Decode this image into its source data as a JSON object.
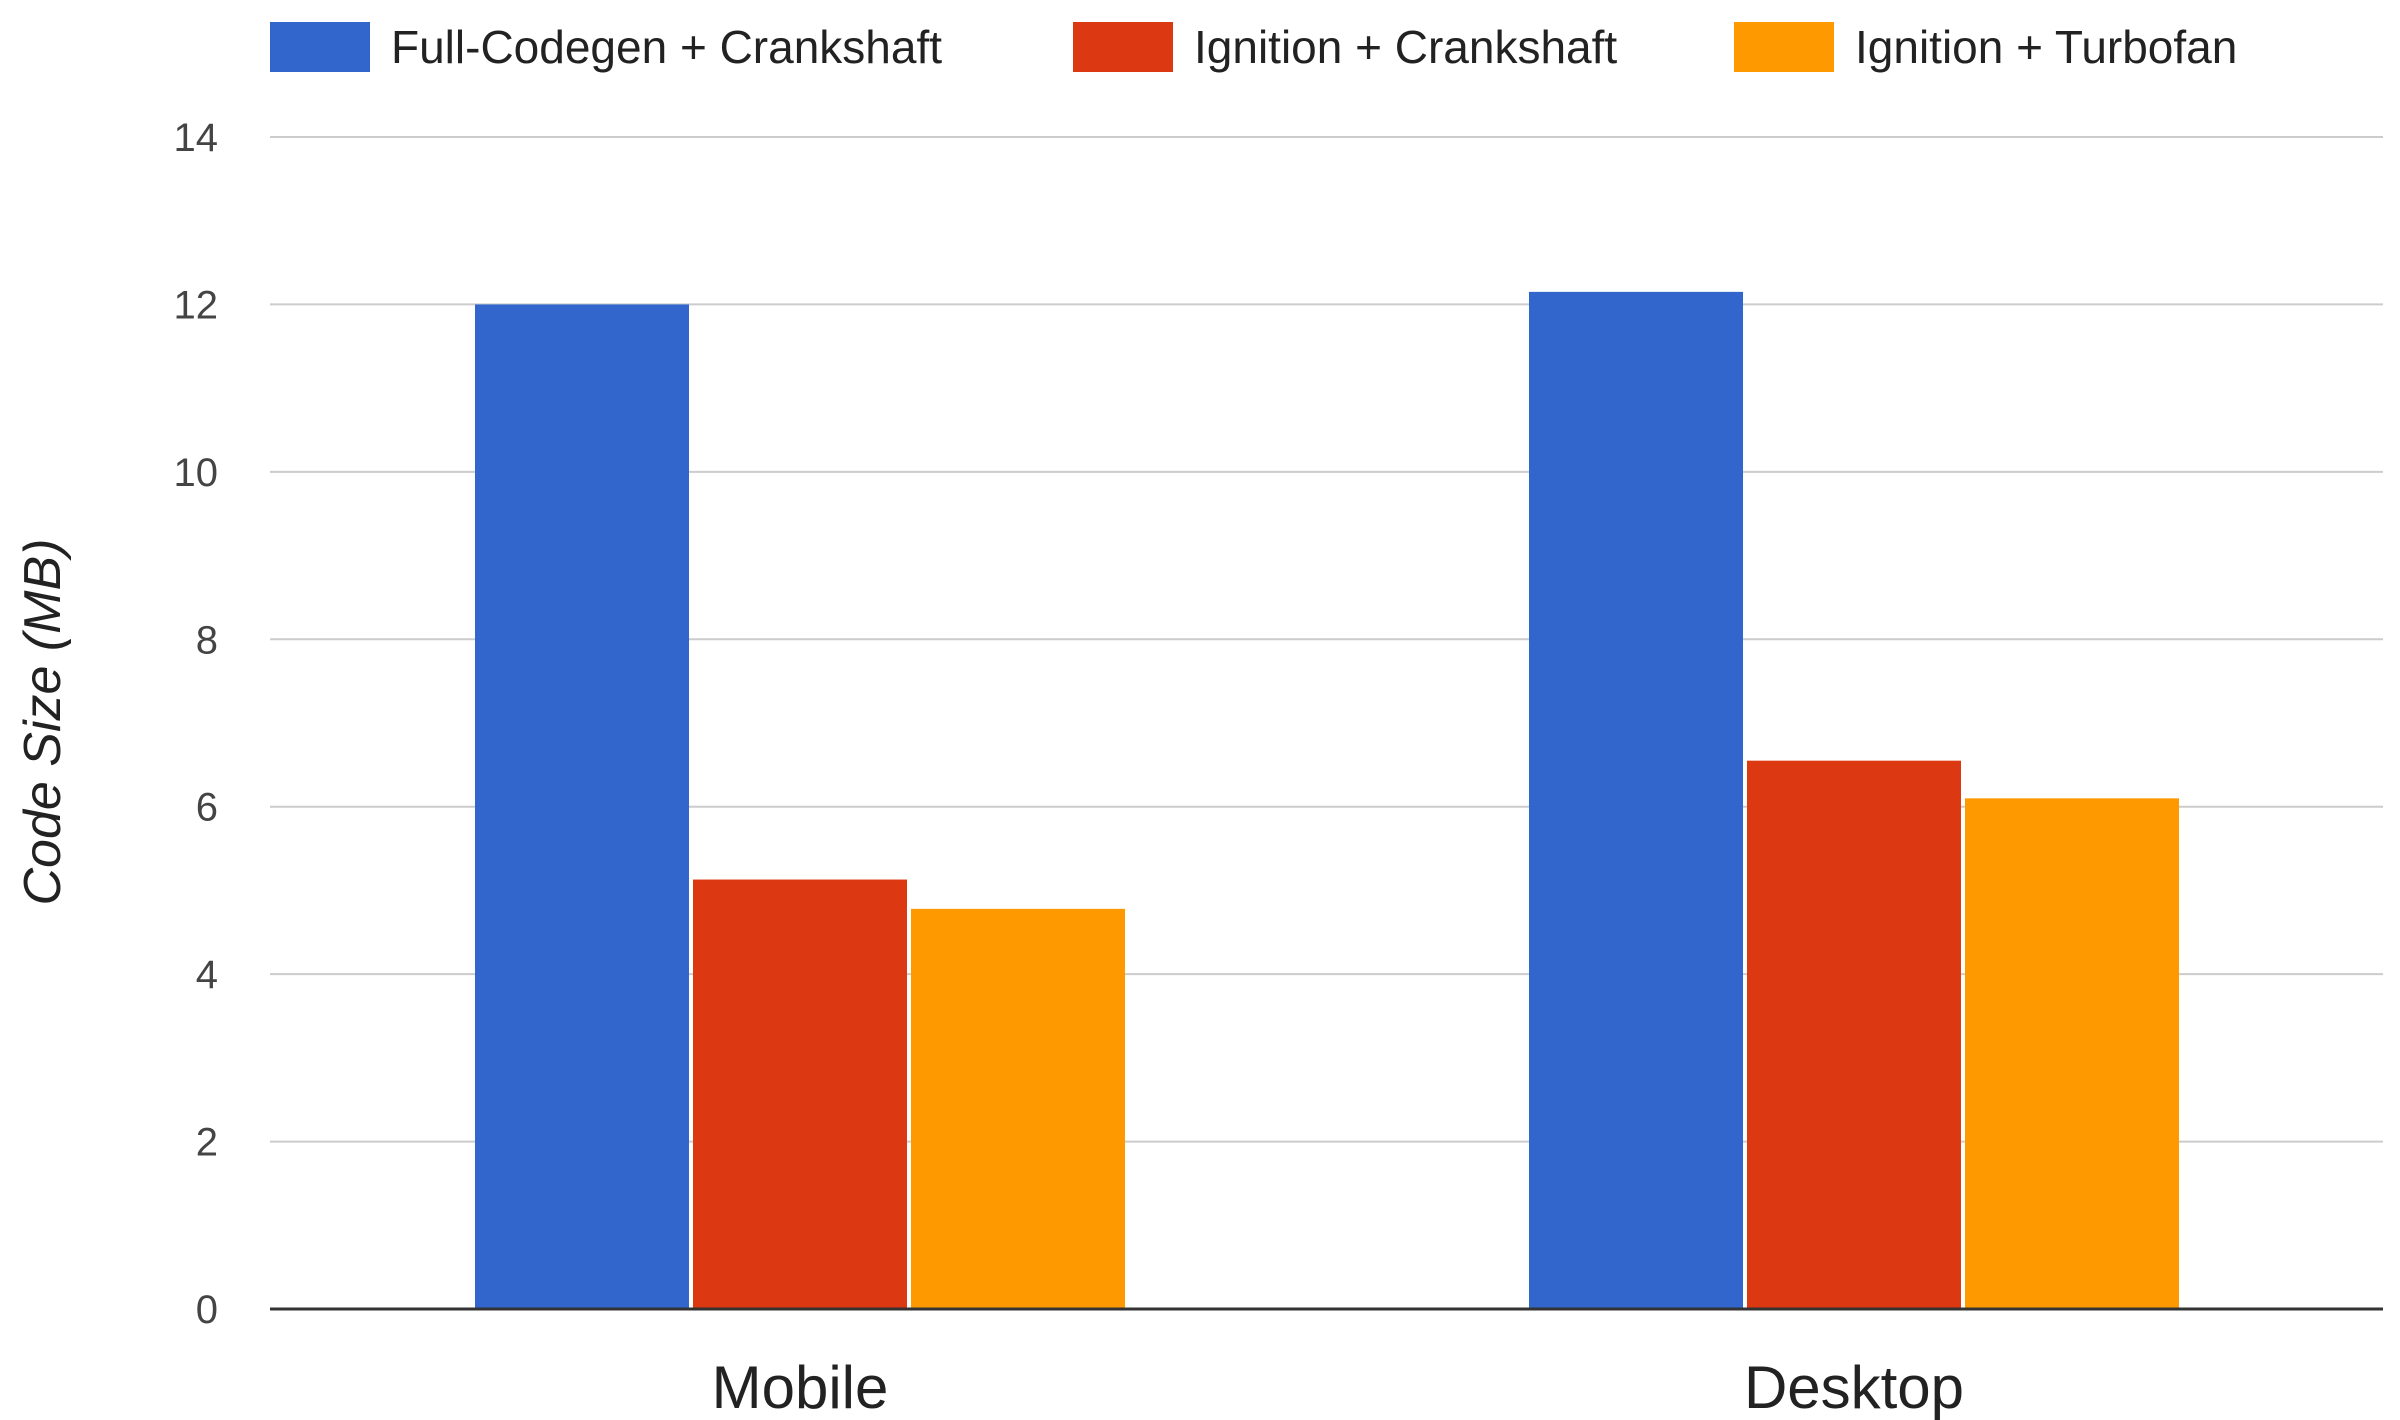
{
  "chart_data": {
    "type": "bar",
    "title": "",
    "xlabel": "",
    "ylabel": "Code Size (MB)",
    "categories": [
      "Mobile",
      "Desktop"
    ],
    "series": [
      {
        "name": "Full-Codegen + Crankshaft",
        "color": "#3366cc",
        "values": [
          12.0,
          12.15
        ]
      },
      {
        "name": "Ignition + Crankshaft",
        "color": "#dc3912",
        "values": [
          5.13,
          6.55
        ]
      },
      {
        "name": "Ignition + Turbofan",
        "color": "#ff9900",
        "values": [
          4.78,
          6.1
        ]
      }
    ],
    "yticks": [
      "0",
      "2",
      "4",
      "6",
      "8",
      "10",
      "12",
      "14"
    ],
    "ylim": [
      0,
      14
    ],
    "grid": true,
    "legend_position": "top"
  }
}
